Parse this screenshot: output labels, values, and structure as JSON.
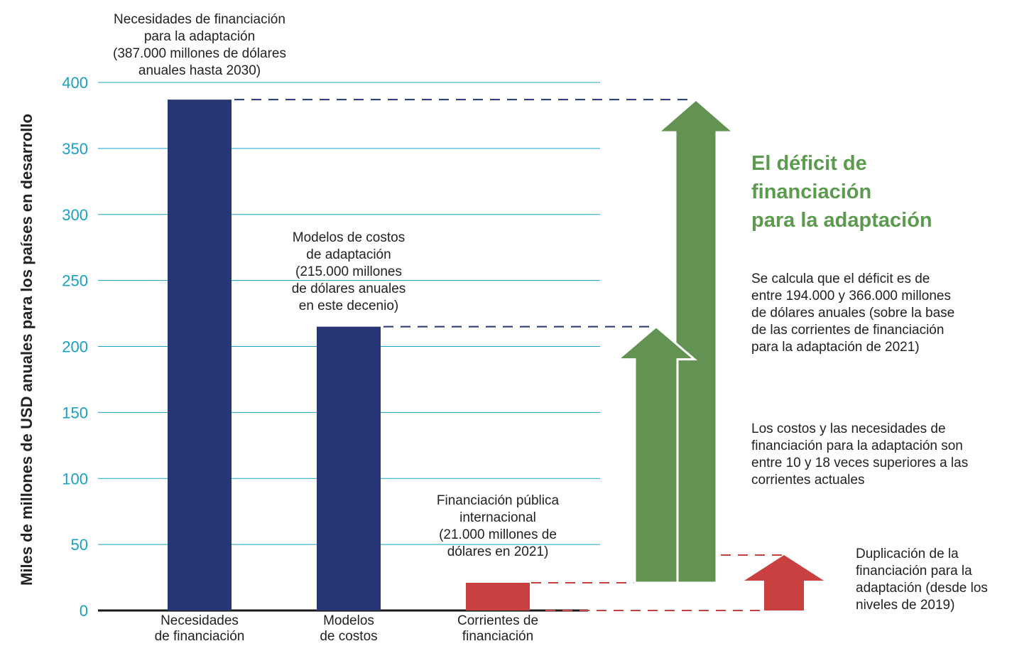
{
  "chart_data": {
    "type": "bar",
    "ylabel": "Miles de millones de USD anuales para los países en desarrollo",
    "ylim": [
      0,
      400
    ],
    "yticks": [
      0,
      50,
      100,
      150,
      200,
      250,
      300,
      350,
      400
    ],
    "grid": true,
    "categories": [
      "Necesidades\nde financiación",
      "Modelos\nde costos",
      "Corrientes de\nfinanciación"
    ],
    "values": [
      387,
      215,
      21
    ],
    "bar_colors": [
      "#263574",
      "#263574",
      "#c8403f"
    ],
    "annotations": [
      "Necesidades de financiación\npara la adaptación\n(387.000 millones de dólares\nanuales hasta 2030)",
      "Modelos de costos\nde adaptación\n(215.000 millones\nde dólares anuales\nen este decenio)",
      "Financiación pública\ninternacional\n(21.000 millones de\ndólares en 2021)"
    ],
    "gap_arrows": [
      {
        "from": 21,
        "to": 387,
        "color": "#639353"
      },
      {
        "from": 21,
        "to": 215,
        "color": "#639353"
      },
      {
        "from": 0,
        "to": 42,
        "color": "#c8403f"
      }
    ]
  },
  "headline": "El déficit de\nfinanciación\npara la adaptación",
  "texts": {
    "deficit": "Se calcula que el déficit es de\nentre 194.000 y 366.000 millones\nde dólares anuales (sobre la base\nde las corrientes de financiación\npara la adaptación de 2021)",
    "ratio": "Los costos y las necesidades de\nfinanciación para la adaptación son\nentre 10 y 18 veces superiores a las\ncorrientes actuales",
    "doubling": "Duplicación de la\nfinanciación para la\nadaptación (desde los\nniveles de 2019)"
  },
  "colors": {
    "grid": "#1aa0c6",
    "navy": "#263574",
    "red": "#c8403f",
    "green": "#639353",
    "headline_green": "#5c9a4f"
  }
}
